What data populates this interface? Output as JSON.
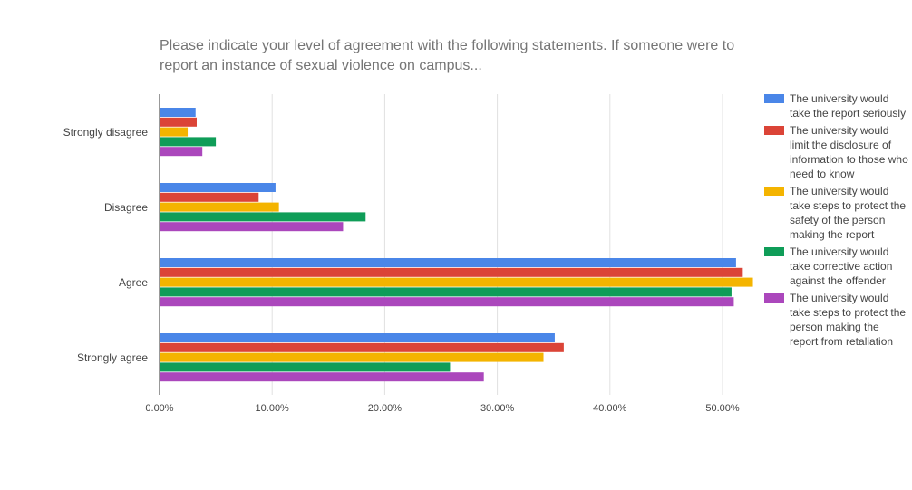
{
  "chart_data": {
    "type": "bar",
    "orientation": "horizontal",
    "title": "Please indicate your level of agreement with the following statements. If someone were to report an instance of sexual violence on campus...",
    "categories": [
      "Strongly disagree",
      "Disagree",
      "Agree",
      "Strongly agree"
    ],
    "xlim": [
      0,
      0.55
    ],
    "xticks": [
      0,
      0.1,
      0.2,
      0.3,
      0.4,
      0.5
    ],
    "xtick_labels": [
      "0.00%",
      "10.00%",
      "20.00%",
      "30.00%",
      "40.00%",
      "50.00%"
    ],
    "grid": true,
    "legend_position": "right",
    "series": [
      {
        "name": "The university would take the report seriously",
        "color": "#4a86e8",
        "values": [
          0.032,
          0.103,
          0.512,
          0.351
        ]
      },
      {
        "name": "The university would limit the disclosure of information to those who need to know",
        "color": "#db4437",
        "values": [
          0.033,
          0.088,
          0.518,
          0.359
        ]
      },
      {
        "name": "The university would take steps to protect the safety of the person making the report",
        "color": "#f4b400",
        "values": [
          0.025,
          0.106,
          0.527,
          0.341
        ]
      },
      {
        "name": "The university would take corrective action against the offender",
        "color": "#0f9d58",
        "values": [
          0.05,
          0.183,
          0.508,
          0.258
        ]
      },
      {
        "name": "The university would take steps to protect the person making the report from retaliation",
        "color": "#ab47bc",
        "values": [
          0.038,
          0.163,
          0.51,
          0.288
        ]
      }
    ]
  }
}
